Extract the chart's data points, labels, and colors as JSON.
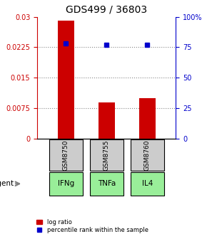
{
  "title": "GDS499 / 36803",
  "samples": [
    "GSM8750",
    "GSM8755",
    "GSM8760"
  ],
  "agents": [
    "IFNg",
    "TNFa",
    "IL4"
  ],
  "log_ratios": [
    0.029,
    0.009,
    0.01
  ],
  "percentile_ranks": [
    0.78,
    0.77,
    0.77
  ],
  "ylim_left": [
    0,
    0.03
  ],
  "ylim_right": [
    0,
    1.0
  ],
  "yticks_left": [
    0,
    0.0075,
    0.015,
    0.0225,
    0.03
  ],
  "ytick_labels_left": [
    "0",
    "0.0075",
    "0.015",
    "0.0225",
    "0.03"
  ],
  "yticks_right": [
    0,
    0.25,
    0.5,
    0.75,
    1.0
  ],
  "ytick_labels_right": [
    "0",
    "25",
    "50",
    "75",
    "100%"
  ],
  "bar_color": "#cc0000",
  "marker_color": "#0000cc",
  "left_tick_color": "#cc0000",
  "right_tick_color": "#0000cc",
  "grid_color": "#888888",
  "sample_box_color": "#cccccc",
  "agent_box_color": "#99ee99",
  "agent_box_border": "#000000",
  "sample_box_border": "#000000",
  "legend_bar_label": "log ratio",
  "legend_marker_label": "percentile rank within the sample",
  "agent_label": "agent",
  "bar_width": 0.4,
  "marker_size": 5
}
